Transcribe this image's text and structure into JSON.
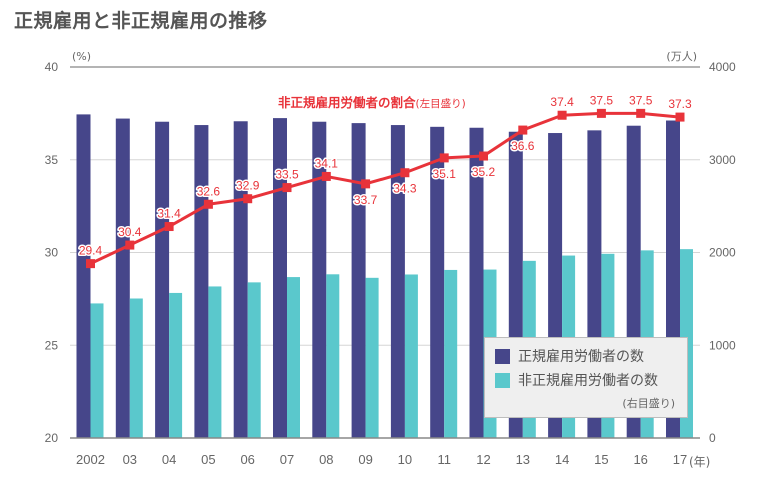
{
  "title": "正規雇用と非正規雇用の推移",
  "colors": {
    "regular": "#46468a",
    "nonregular": "#5ac8cc",
    "ratio": "#e8333a",
    "grid": "#d5d5d5",
    "axis": "#888888"
  },
  "chart_data": {
    "type": "bar",
    "title": "正規雇用と非正規雇用の推移",
    "categories": [
      "2002",
      "03",
      "04",
      "05",
      "06",
      "07",
      "08",
      "09",
      "10",
      "11",
      "12",
      "13",
      "14",
      "15",
      "16",
      "17"
    ],
    "xlabel_unit": "(年)",
    "left_axis": {
      "unit": "(%)",
      "range": [
        20,
        40
      ],
      "ticks": [
        20,
        25,
        30,
        35,
        40
      ]
    },
    "right_axis": {
      "unit": "(万人)",
      "range": [
        0,
        4000
      ],
      "ticks": [
        0,
        1000,
        2000,
        3000,
        4000
      ]
    },
    "grid": true,
    "series": [
      {
        "name": "正規雇用労働者の数",
        "type": "bar",
        "axis": "right",
        "values": [
          3489,
          3444,
          3410,
          3374,
          3415,
          3449,
          3410,
          3395,
          3374,
          3355,
          3345,
          3302,
          3288,
          3317,
          3367,
          3423
        ]
      },
      {
        "name": "非正規雇用労働者の数",
        "type": "bar",
        "axis": "right",
        "values": [
          1451,
          1504,
          1564,
          1634,
          1678,
          1735,
          1765,
          1727,
          1763,
          1812,
          1816,
          1910,
          1967,
          1986,
          2023,
          2036
        ]
      },
      {
        "name": "非正規雇用労働者の割合",
        "name_note": "(左目盛り)",
        "type": "line",
        "axis": "left",
        "values": [
          29.4,
          30.4,
          31.4,
          32.6,
          32.9,
          33.5,
          34.1,
          33.7,
          34.3,
          35.1,
          35.2,
          36.6,
          37.4,
          37.5,
          37.5,
          37.3
        ],
        "label_positions": [
          "above",
          "above",
          "above",
          "above",
          "above",
          "above",
          "above",
          "below",
          "below",
          "below",
          "below",
          "below",
          "above",
          "above",
          "above",
          "above"
        ]
      }
    ],
    "legend": {
      "placement": "bottom-right",
      "items": [
        "正規雇用労働者の数",
        "非正規雇用労働者の数"
      ],
      "note": "(右目盛り)"
    }
  }
}
